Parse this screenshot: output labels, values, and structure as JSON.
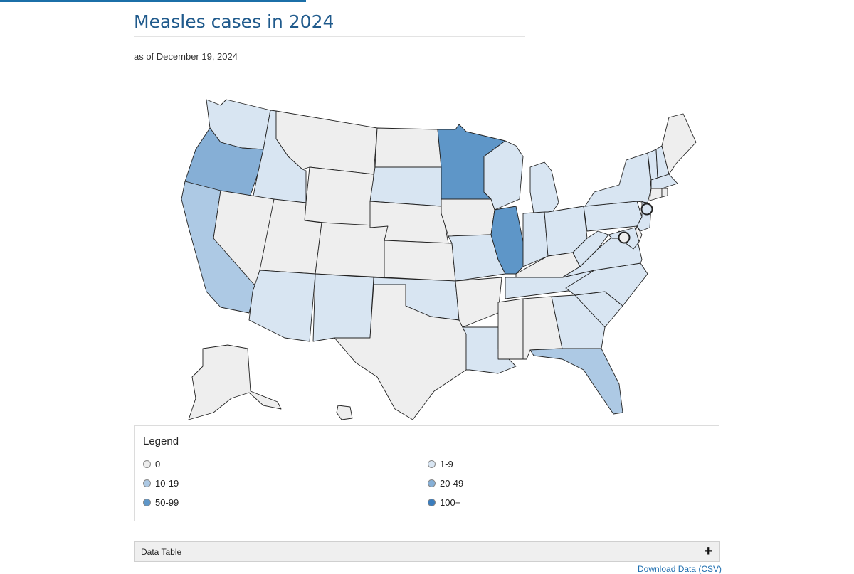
{
  "page": {
    "title": "Measles cases in 2024",
    "subtitle": "as of December 19, 2024"
  },
  "map": {
    "scale_colors": {
      "0": "#eeeeee",
      "1-9": "#d8e5f2",
      "10-19": "#adc9e4",
      "20-49": "#86afd6",
      "50-99": "#5e96c8",
      "100+": "#3b7dbd"
    },
    "states": [
      {
        "id": "WA",
        "bin": "1-9"
      },
      {
        "id": "OR",
        "bin": "20-49"
      },
      {
        "id": "CA",
        "bin": "10-19"
      },
      {
        "id": "ID",
        "bin": "1-9"
      },
      {
        "id": "NV",
        "bin": "0"
      },
      {
        "id": "MT",
        "bin": "0"
      },
      {
        "id": "WY",
        "bin": "0"
      },
      {
        "id": "UT",
        "bin": "0"
      },
      {
        "id": "CO",
        "bin": "0"
      },
      {
        "id": "AZ",
        "bin": "1-9"
      },
      {
        "id": "NM",
        "bin": "1-9"
      },
      {
        "id": "ND",
        "bin": "0"
      },
      {
        "id": "SD",
        "bin": "1-9"
      },
      {
        "id": "NE",
        "bin": "0"
      },
      {
        "id": "KS",
        "bin": "0"
      },
      {
        "id": "OK",
        "bin": "1-9"
      },
      {
        "id": "TX",
        "bin": "0"
      },
      {
        "id": "MN",
        "bin": "50-99"
      },
      {
        "id": "IA",
        "bin": "0"
      },
      {
        "id": "MO",
        "bin": "1-9"
      },
      {
        "id": "AR",
        "bin": "0"
      },
      {
        "id": "LA",
        "bin": "1-9"
      },
      {
        "id": "WI",
        "bin": "1-9"
      },
      {
        "id": "IL",
        "bin": "50-99"
      },
      {
        "id": "MI",
        "bin": "1-9"
      },
      {
        "id": "IN",
        "bin": "1-9"
      },
      {
        "id": "OH",
        "bin": "1-9"
      },
      {
        "id": "KY",
        "bin": "0"
      },
      {
        "id": "TN",
        "bin": "1-9"
      },
      {
        "id": "MS",
        "bin": "0"
      },
      {
        "id": "AL",
        "bin": "0"
      },
      {
        "id": "GA",
        "bin": "1-9"
      },
      {
        "id": "FL",
        "bin": "10-19"
      },
      {
        "id": "SC",
        "bin": "1-9"
      },
      {
        "id": "NC",
        "bin": "1-9"
      },
      {
        "id": "VA",
        "bin": "1-9"
      },
      {
        "id": "WV",
        "bin": "1-9"
      },
      {
        "id": "PA",
        "bin": "1-9"
      },
      {
        "id": "NY",
        "bin": "1-9"
      },
      {
        "id": "VT",
        "bin": "1-9"
      },
      {
        "id": "NH",
        "bin": "1-9"
      },
      {
        "id": "ME",
        "bin": "0"
      },
      {
        "id": "MA",
        "bin": "1-9"
      },
      {
        "id": "CT",
        "bin": "0"
      },
      {
        "id": "RI",
        "bin": "0"
      },
      {
        "id": "NJ",
        "bin": "1-9"
      },
      {
        "id": "DE",
        "bin": "0"
      },
      {
        "id": "MD",
        "bin": "1-9"
      },
      {
        "id": "AK",
        "bin": "0"
      },
      {
        "id": "HI",
        "bin": "0"
      }
    ],
    "markers": [
      {
        "id": "NYC",
        "bin": "1-9"
      },
      {
        "id": "DC",
        "bin": "0"
      }
    ]
  },
  "legend": {
    "title": "Legend",
    "items": [
      {
        "label": "0",
        "color": "#eeeeee"
      },
      {
        "label": "1-9",
        "color": "#d8e5f2"
      },
      {
        "label": "10-19",
        "color": "#adc9e4"
      },
      {
        "label": "20-49",
        "color": "#86afd6"
      },
      {
        "label": "50-99",
        "color": "#5e96c8"
      },
      {
        "label": "100+",
        "color": "#3b7dbd"
      }
    ]
  },
  "data_table": {
    "label": "Data Table",
    "toggle_icon": "+"
  },
  "download": {
    "label": "Download Data (CSV)"
  }
}
